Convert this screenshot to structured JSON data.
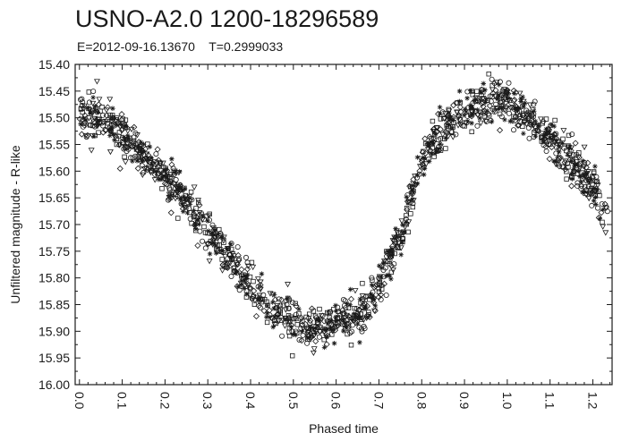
{
  "header": {
    "title": "USNO-A2.0 1200-18296589",
    "subtitle": "E=2012-09-16.13670    T=0.2999033"
  },
  "chart_data": {
    "type": "scatter",
    "title": "USNO-A2.0 1200-18296589",
    "subtitle": "E=2012-09-16.13670    T=0.2999033",
    "xlabel": "Phased time",
    "ylabel": "Unfiltered magnitude - R-like",
    "xlim": [
      -0.01,
      1.245
    ],
    "ylim": [
      16.0,
      15.4
    ],
    "y_inverted": true,
    "x_ticks": [
      "0.0",
      "0.1",
      "0.2",
      "0.3",
      "0.4",
      "0.5",
      "0.6",
      "0.7",
      "0.8",
      "0.9",
      "1.0",
      "1.1",
      "1.2"
    ],
    "y_ticks": [
      "15.40",
      "15.45",
      "15.50",
      "15.55",
      "15.60",
      "15.65",
      "15.70",
      "15.75",
      "15.80",
      "15.85",
      "15.90",
      "15.95",
      "16.00"
    ],
    "grid": false,
    "marker_color": "#1a1a1a",
    "marker_shapes": [
      "circle",
      "star",
      "triangle-down",
      "diamond",
      "square"
    ],
    "light_curve_trend": {
      "x": [
        0.0,
        0.05,
        0.1,
        0.15,
        0.2,
        0.25,
        0.3,
        0.35,
        0.4,
        0.45,
        0.5,
        0.55,
        0.6,
        0.65,
        0.7,
        0.75,
        0.8,
        0.85,
        0.9,
        0.95,
        1.0,
        1.05,
        1.1,
        1.15,
        1.2,
        1.24
      ],
      "y": [
        15.49,
        15.5,
        15.53,
        15.57,
        15.61,
        15.66,
        15.71,
        15.76,
        15.82,
        15.86,
        15.88,
        15.89,
        15.89,
        15.87,
        15.82,
        15.72,
        15.58,
        15.52,
        15.49,
        15.47,
        15.47,
        15.5,
        15.54,
        15.58,
        15.63,
        15.68
      ]
    },
    "point_scatter_sigma": 0.02,
    "approx_point_count": 1500
  }
}
